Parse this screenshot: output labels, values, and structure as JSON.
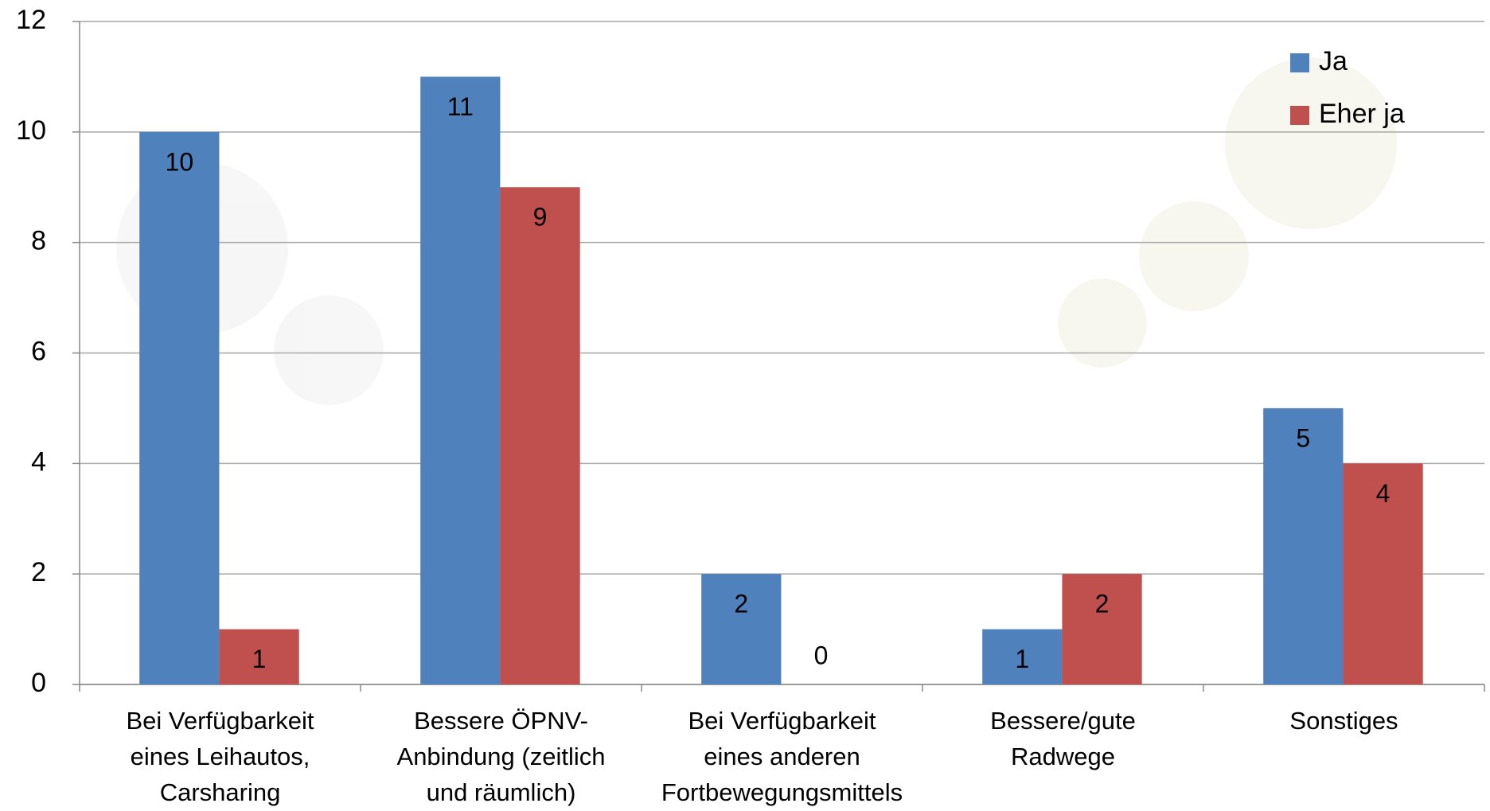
{
  "chart_data": {
    "type": "bar",
    "categories": [
      "Bei Verfügbarkeit eines Leihautos, Carsharing",
      "Bessere ÖPNV-Anbindung (zeitlich und räumlich)",
      "Bei Verfügbarkeit eines anderen Fortbewegungsmittels",
      "Bessere/gute Radwege",
      "Sonstiges"
    ],
    "series": [
      {
        "name": "Ja",
        "color": "#4f81bd",
        "values": [
          10,
          11,
          2,
          1,
          5
        ]
      },
      {
        "name": "Eher ja",
        "color": "#c0504d",
        "values": [
          1,
          9,
          0,
          2,
          4
        ]
      }
    ],
    "ylim": [
      0,
      12
    ],
    "yticks": [
      0,
      2,
      4,
      6,
      8,
      10,
      12
    ],
    "grid": true,
    "legend": "top-right"
  }
}
